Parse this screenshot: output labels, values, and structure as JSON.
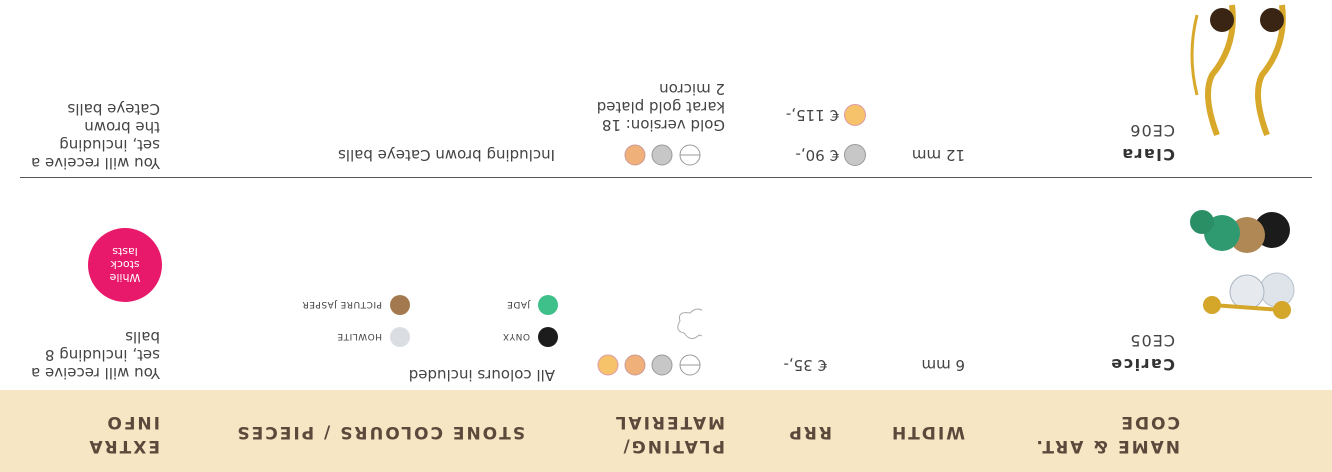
{
  "header": {
    "columns": [
      "NAME & ART. CODE",
      "WIDTH",
      "RRP",
      "PLATING/ MATERIAL",
      "STONE COLOURS / PIECES",
      "EXTRA INFO"
    ]
  },
  "rows": [
    {
      "name": "Carice",
      "code": "CE05",
      "width": "6 mm",
      "prices": [
        "€ 35,-"
      ],
      "plating_note": "",
      "stones_note": "All colours included",
      "stones": [
        "ONYX",
        "JADE",
        "HOWLITE",
        "PICTURE JASPER"
      ],
      "extra": "You will receive a set, including 8 balls",
      "badge": "While stock lasts"
    },
    {
      "name": "Clara",
      "code": "CE06",
      "width": "12 mm",
      "prices": [
        "€ 90,-",
        "€ 115,-"
      ],
      "plating_note": "Gold version: 18 karat gold plated 2 micron",
      "stones_note": "Including brown Cateye balls",
      "extra": "You will receive a set, including the brown Cateye balls"
    }
  ]
}
